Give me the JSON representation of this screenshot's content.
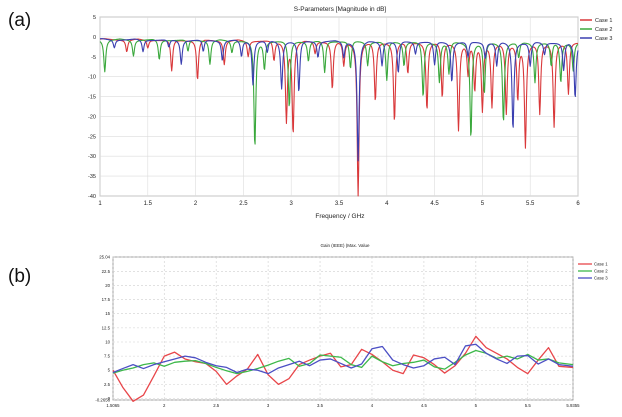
{
  "panels": {
    "a_label": "(a)",
    "b_label": "(b)"
  },
  "chart_data": [
    {
      "type": "line",
      "title": "S-Parameters [Magnitude in dB]",
      "xlabel": "Frequency / GHz",
      "ylabel": "",
      "xlim": [
        1,
        6
      ],
      "ylim": [
        -40,
        5
      ],
      "xticks": [
        "1",
        "1.5",
        "2",
        "2.5",
        "3",
        "3.5",
        "4",
        "4.5",
        "5",
        "5.5",
        "6"
      ],
      "yticks": [
        "5",
        "0",
        "-5",
        "-10",
        "-15",
        "-20",
        "-25",
        "-30",
        "-35",
        "-40"
      ],
      "grid": true,
      "legend_position": "top-right",
      "series": [
        {
          "name": "Case 1",
          "color": "#d9383a",
          "dips": [
            [
              1.28,
              -3
            ],
            [
              1.5,
              -2
            ],
            [
              1.75,
              -8
            ],
            [
              2.02,
              -10
            ],
            [
              2.3,
              -6
            ],
            [
              2.55,
              -4
            ],
            [
              2.82,
              -5
            ],
            [
              2.95,
              -20
            ],
            [
              3.02,
              -23
            ],
            [
              3.25,
              -3
            ],
            [
              3.43,
              -12
            ],
            [
              3.55,
              -6
            ],
            [
              3.7,
              -39
            ],
            [
              3.88,
              -15
            ],
            [
              4.08,
              -20
            ],
            [
              4.22,
              -8
            ],
            [
              4.42,
              -17
            ],
            [
              4.58,
              -14
            ],
            [
              4.75,
              -22
            ],
            [
              4.85,
              -8
            ],
            [
              4.92,
              -12
            ],
            [
              5.0,
              -17
            ],
            [
              5.1,
              -16
            ],
            [
              5.25,
              -18
            ],
            [
              5.37,
              -14
            ],
            [
              5.45,
              -26
            ],
            [
              5.6,
              -18
            ],
            [
              5.75,
              -21
            ],
            [
              5.9,
              -13
            ]
          ]
        },
        {
          "name": "Case 2",
          "color": "#3aa83c",
          "dips": [
            [
              1.05,
              -8
            ],
            [
              1.35,
              -4
            ],
            [
              1.62,
              -5
            ],
            [
              1.92,
              -3
            ],
            [
              2.15,
              -6
            ],
            [
              2.38,
              -3
            ],
            [
              2.62,
              -27
            ],
            [
              2.72,
              -7
            ],
            [
              2.98,
              -17
            ],
            [
              3.18,
              -5
            ],
            [
              3.35,
              -8
            ],
            [
              3.62,
              -7
            ],
            [
              3.8,
              -6
            ],
            [
              4.0,
              -10
            ],
            [
              4.18,
              -6
            ],
            [
              4.38,
              -14
            ],
            [
              4.55,
              -10
            ],
            [
              4.65,
              -8
            ],
            [
              4.88,
              -24
            ],
            [
              5.02,
              -13
            ],
            [
              5.22,
              -20
            ],
            [
              5.38,
              -4
            ],
            [
              5.55,
              -10
            ],
            [
              5.72,
              -6
            ],
            [
              5.82,
              -10
            ],
            [
              5.95,
              -7
            ]
          ]
        },
        {
          "name": "Case 3",
          "color": "#3a3fb0",
          "dips": [
            [
              1.15,
              -2
            ],
            [
              1.45,
              -3
            ],
            [
              1.72,
              -2
            ],
            [
              1.85,
              -6
            ],
            [
              2.08,
              -3
            ],
            [
              2.28,
              -5
            ],
            [
              2.48,
              -4
            ],
            [
              2.6,
              -11
            ],
            [
              2.75,
              -3
            ],
            [
              2.9,
              -12
            ],
            [
              3.08,
              -13
            ],
            [
              3.28,
              -4
            ],
            [
              3.55,
              -4
            ],
            [
              3.7,
              -30
            ],
            [
              3.95,
              -6
            ],
            [
              4.12,
              -8
            ],
            [
              4.3,
              -3
            ],
            [
              4.5,
              -6
            ],
            [
              4.68,
              -10
            ],
            [
              4.85,
              -4
            ],
            [
              5.03,
              -4
            ],
            [
              5.15,
              -6
            ],
            [
              5.32,
              -22
            ],
            [
              5.5,
              -6
            ],
            [
              5.65,
              -3
            ],
            [
              5.85,
              -7
            ],
            [
              5.97,
              -14
            ]
          ]
        }
      ]
    },
    {
      "type": "line",
      "title": "Gain (IEEE) (Max. Value",
      "xlabel": "",
      "ylabel": "",
      "xlim": [
        1.5065,
        5.9355
      ],
      "ylim": [
        -0.2656,
        25.04
      ],
      "xticks": [
        "1.5065",
        "2",
        "2.5",
        "3",
        "3.5",
        "4",
        "4.5",
        "5",
        "5.5",
        "5.9355"
      ],
      "yticks": [
        "25.04",
        "22.5",
        "20",
        "17.5",
        "15",
        "12.5",
        "10",
        "7.5",
        "5",
        "2.5",
        "0",
        "-0.2656"
      ],
      "grid": true,
      "legend_position": "top-right",
      "x": [
        1.5065,
        1.6,
        1.7,
        1.8,
        1.9,
        2.0,
        2.1,
        2.2,
        2.3,
        2.4,
        2.5,
        2.6,
        2.7,
        2.8,
        2.9,
        3.0,
        3.1,
        3.2,
        3.3,
        3.4,
        3.5,
        3.6,
        3.7,
        3.8,
        3.9,
        4.0,
        4.1,
        4.2,
        4.3,
        4.4,
        4.5,
        4.6,
        4.7,
        4.8,
        4.9,
        5.0,
        5.1,
        5.2,
        5.3,
        5.4,
        5.5,
        5.6,
        5.7,
        5.8,
        5.9355
      ],
      "series": [
        {
          "name": "Case 1",
          "color": "#e8464a",
          "values": [
            5.0,
            2.0,
            -0.5,
            0.6,
            4.0,
            7.5,
            8.2,
            7.0,
            6.5,
            6.2,
            4.8,
            2.5,
            4.0,
            5.2,
            7.8,
            4.2,
            2.5,
            3.5,
            6.0,
            6.8,
            7.5,
            8.0,
            5.6,
            6.0,
            8.7,
            7.8,
            6.5,
            5.0,
            4.4,
            7.7,
            7.2,
            6.0,
            4.5,
            5.8,
            8.0,
            11.0,
            9.0,
            8.0,
            7.0,
            5.5,
            4.4,
            6.8,
            9.0,
            5.7,
            5.5
          ]
        },
        {
          "name": "Case 2",
          "color": "#3db84a",
          "values": [
            4.5,
            5.0,
            5.4,
            6.0,
            6.3,
            5.7,
            6.4,
            6.6,
            6.7,
            6.2,
            5.5,
            4.9,
            4.4,
            4.8,
            5.3,
            5.9,
            6.6,
            7.1,
            5.7,
            6.2,
            7.7,
            7.5,
            7.3,
            6.0,
            5.5,
            7.5,
            6.5,
            5.8,
            6.2,
            6.4,
            6.8,
            5.6,
            5.2,
            6.4,
            7.7,
            8.5,
            8.0,
            7.1,
            7.5,
            7.0,
            7.8,
            6.8,
            7.0,
            6.3,
            6.0
          ]
        },
        {
          "name": "Case 3",
          "color": "#4c4fc4",
          "values": [
            4.6,
            5.3,
            6.0,
            5.3,
            6.0,
            6.5,
            7.0,
            7.5,
            7.2,
            6.4,
            5.8,
            5.5,
            4.6,
            5.2,
            5.0,
            4.4,
            5.4,
            6.0,
            6.6,
            5.8,
            6.8,
            7.0,
            6.2,
            5.4,
            6.1,
            8.8,
            9.2,
            6.8,
            6.0,
            5.4,
            5.8,
            7.0,
            7.3,
            6.0,
            9.3,
            9.6,
            8.0,
            7.0,
            6.2,
            7.5,
            7.6,
            6.1,
            7.0,
            6.0,
            5.7
          ]
        }
      ]
    }
  ]
}
